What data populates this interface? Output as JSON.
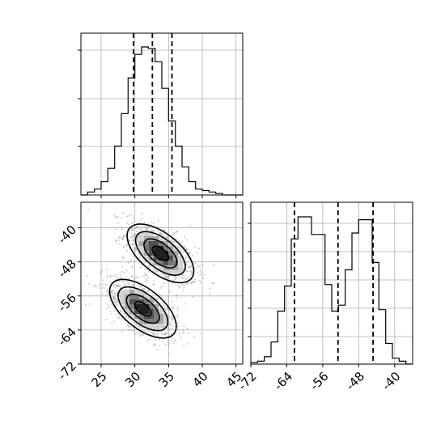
{
  "chart_data": {
    "type": "corner",
    "grid": true,
    "panels": [
      {
        "name": "x-marginal",
        "type": "histogram-step",
        "xlim": [
          22,
          46
        ],
        "bin_edges": [
          22,
          23,
          24,
          25,
          26,
          27,
          28,
          29,
          30,
          31,
          32,
          33,
          34,
          35,
          36,
          37,
          38,
          39,
          40,
          41,
          42,
          43,
          44,
          45,
          46
        ],
        "counts": [
          0,
          0.02,
          0.04,
          0.09,
          0.18,
          0.33,
          0.55,
          0.79,
          0.95,
          1.0,
          0.99,
          0.9,
          0.72,
          0.5,
          0.33,
          0.19,
          0.09,
          0.04,
          0.03,
          0.02,
          0.01,
          0,
          0,
          0
        ],
        "quantile_lines": [
          29.8,
          32.6,
          35.5
        ]
      },
      {
        "name": "y-marginal",
        "type": "histogram-step",
        "xlim": [
          -72,
          -36
        ],
        "bin_edges": [
          -72,
          -70.5,
          -69,
          -67.5,
          -66,
          -64.5,
          -63,
          -61.5,
          -60,
          -58.5,
          -57,
          -55.5,
          -54,
          -52.5,
          -51,
          -49.5,
          -48,
          -46.5,
          -45,
          -43.5,
          -42,
          -40.5,
          -39,
          -37.5,
          -36
        ],
        "counts": [
          0.01,
          0.02,
          0.05,
          0.15,
          0.36,
          0.53,
          0.85,
          1.0,
          1.0,
          0.88,
          0.88,
          0.54,
          0.36,
          0.4,
          0.64,
          0.89,
          0.98,
          0.98,
          0.69,
          0.37,
          0.14,
          0.04,
          0.02,
          0
        ],
        "quantile_lines": [
          -62.3,
          -52.6,
          -44.8
        ],
        "xticks": [
          -72,
          -64,
          -56,
          -48,
          -40
        ]
      },
      {
        "name": "joint",
        "type": "density-contour",
        "xlim": [
          22,
          46
        ],
        "ylim": [
          -72,
          -34
        ],
        "xticks": [
          25,
          30,
          35,
          40,
          45
        ],
        "yticks": [
          -40,
          -48,
          -56,
          -64,
          -72
        ],
        "modes": [
          {
            "center": [
              33.8,
              -46.0
            ],
            "spread": [
              2.3,
              3.2
            ],
            "correlation": -0.6
          },
          {
            "center": [
              31.2,
              -59.0
            ],
            "spread": [
              2.3,
              3.2
            ],
            "correlation": -0.6
          }
        ]
      }
    ]
  }
}
